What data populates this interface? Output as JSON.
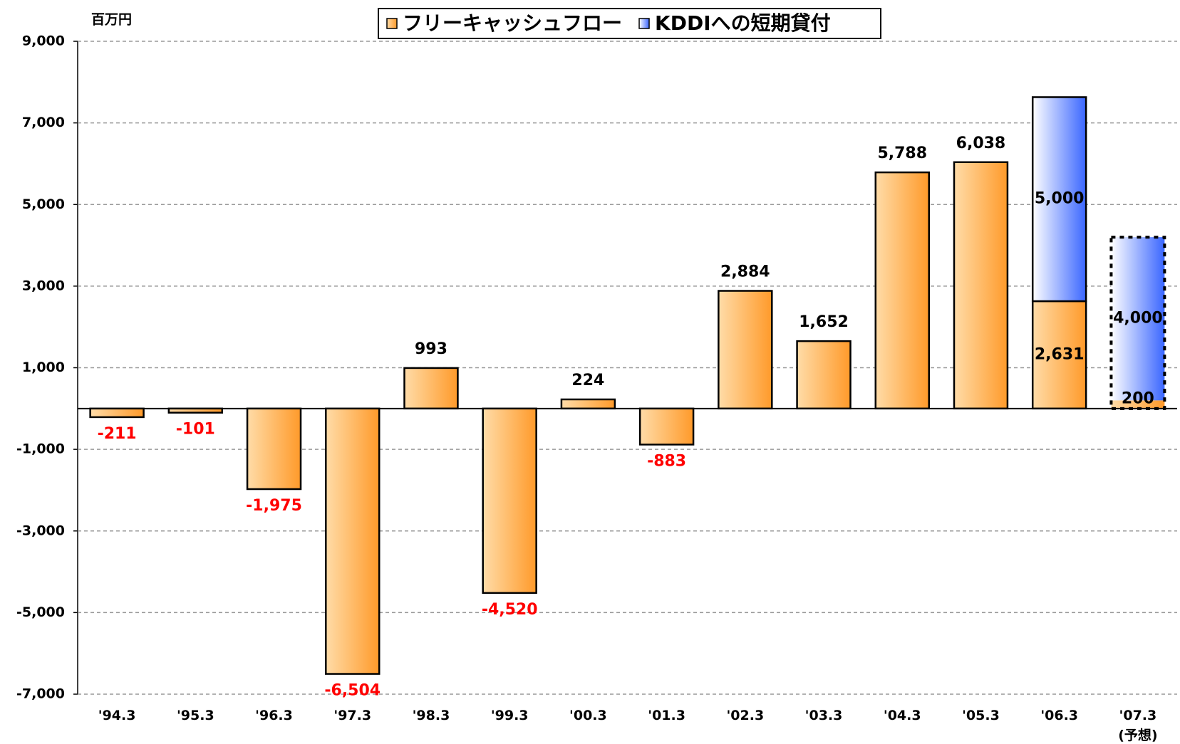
{
  "chart_data": {
    "type": "bar",
    "stacked": true,
    "unit_label": "百万円",
    "categories": [
      "'94.3",
      "'95.3",
      "'96.3",
      "'97.3",
      "'98.3",
      "'99.3",
      "'00.3",
      "'01.3",
      "'02.3",
      "'03.3",
      "'04.3",
      "'05.3",
      "'06.3",
      "'07.3\n(予想)"
    ],
    "dashed_outline": [
      false,
      false,
      false,
      false,
      false,
      false,
      false,
      false,
      false,
      false,
      false,
      false,
      false,
      true
    ],
    "series": [
      {
        "name": "フリーキャッシュフロー",
        "color": "#ff9a2a",
        "values": [
          -211,
          -101,
          -1975,
          -6504,
          993,
          -4520,
          224,
          -883,
          2884,
          1652,
          5788,
          6038,
          2631,
          200
        ],
        "value_labels": [
          "-211",
          "-101",
          "-1,975",
          "-6,504",
          "993",
          "-4,520",
          "224",
          "-883",
          "2,884",
          "1,652",
          "5,788",
          "6,038",
          "2,631",
          "200"
        ]
      },
      {
        "name": "KDDIへの短期貸付",
        "color": "#3a66ff",
        "values": [
          null,
          null,
          null,
          null,
          null,
          null,
          null,
          null,
          null,
          null,
          null,
          null,
          5000,
          4000
        ],
        "value_labels": [
          null,
          null,
          null,
          null,
          null,
          null,
          null,
          null,
          null,
          null,
          null,
          null,
          "5,000",
          "4,000"
        ]
      }
    ],
    "negative_label_color": "#ff0000",
    "ylim": [
      -7000,
      9000
    ],
    "yticks": [
      {
        "value": -7000,
        "label": "-7,000"
      },
      {
        "value": -5000,
        "label": "-5,000"
      },
      {
        "value": -3000,
        "label": "-3,000"
      },
      {
        "value": -1000,
        "label": "-1,000"
      },
      {
        "value": 1000,
        "label": "1,000"
      },
      {
        "value": 3000,
        "label": "3,000"
      },
      {
        "value": 5000,
        "label": "5,000"
      },
      {
        "value": 7000,
        "label": "7,000"
      },
      {
        "value": 9000,
        "label": "9,000"
      }
    ],
    "grid": true,
    "legend": "top"
  }
}
